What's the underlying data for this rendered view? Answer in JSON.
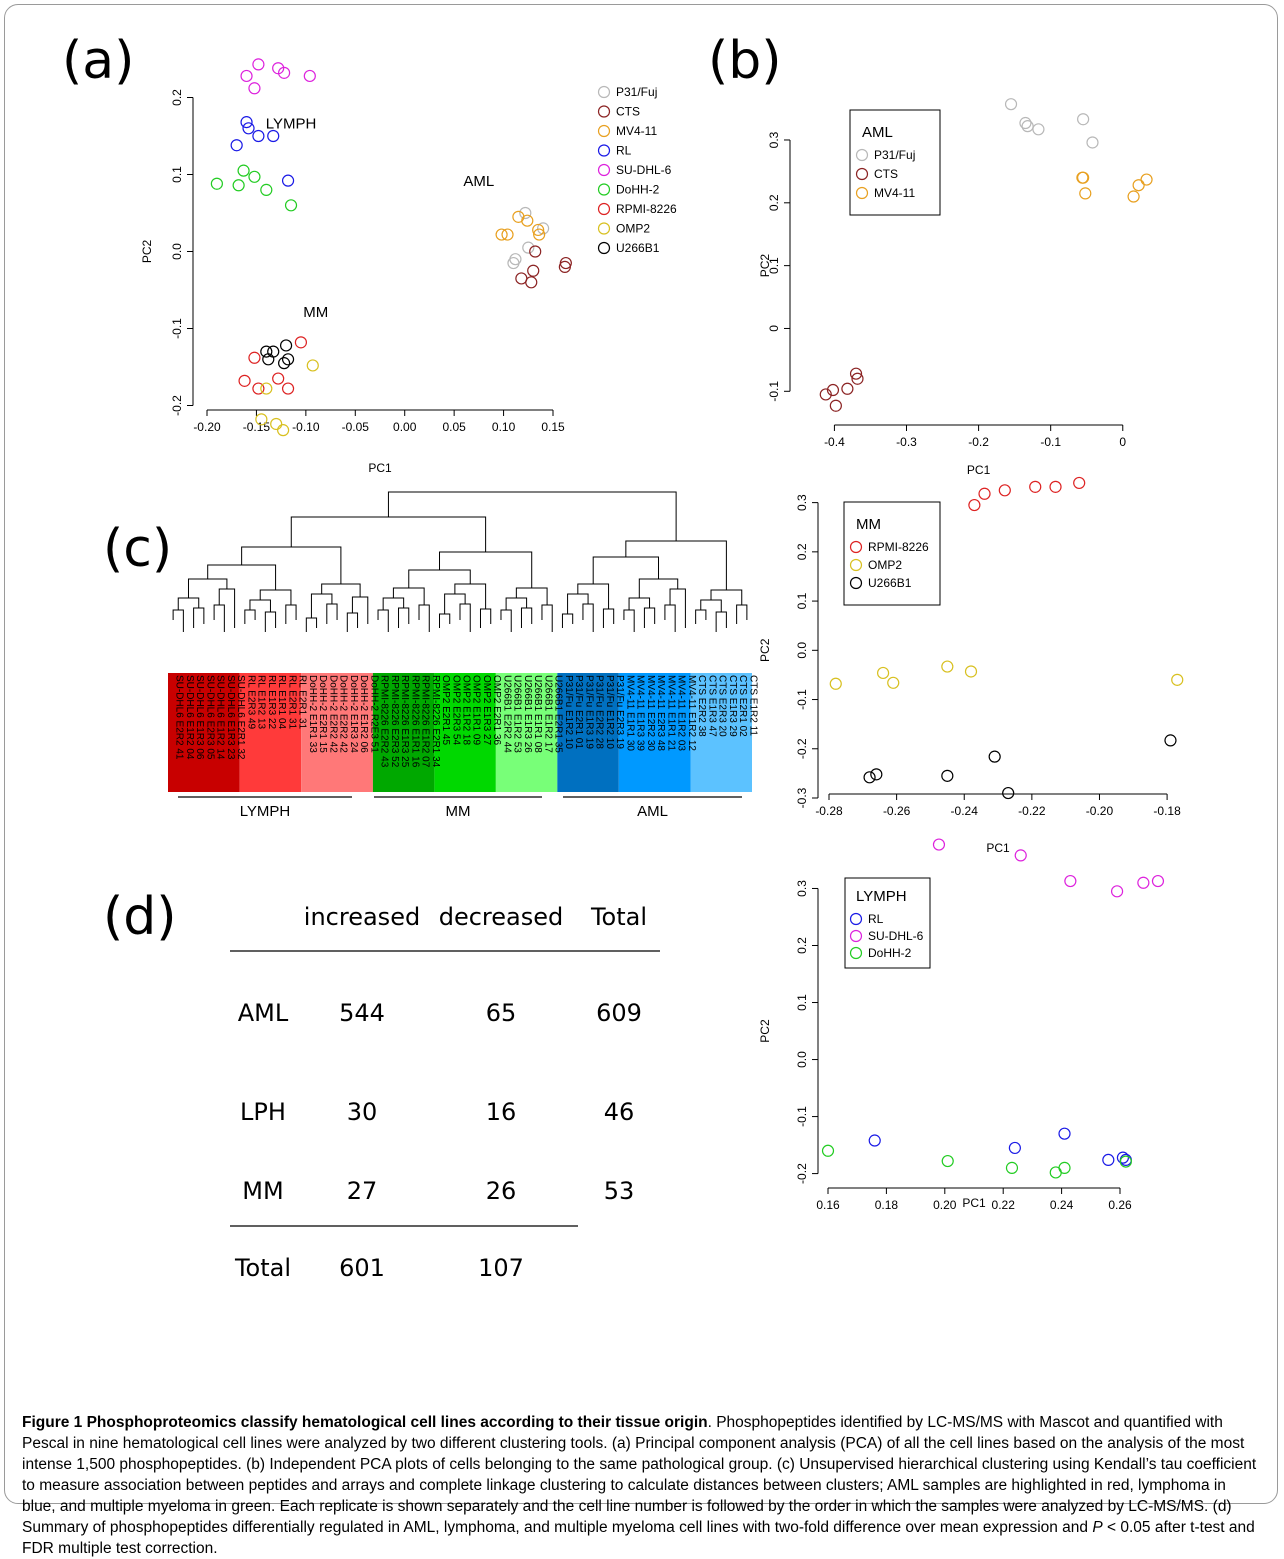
{
  "panel_labels": {
    "a": "(a)",
    "b": "(b)",
    "c": "(c)",
    "d": "(d)"
  },
  "colors": {
    "P31/Fuj": "#b8b8b8",
    "CTS": "#8b2323",
    "MV4-11": "#e8a020",
    "RL": "#1a1ae6",
    "SU-DHL-6": "#dd22dd",
    "DoHH-2": "#22cc22",
    "RPMI-8226": "#dd2222",
    "OMP2": "#d8c020",
    "U266B1": "#000000"
  },
  "chart_data": [
    {
      "id": "a",
      "type": "scatter",
      "xlabel": "PC1",
      "ylabel": "PC2",
      "xlim": [
        -0.2,
        0.15
      ],
      "ylim": [
        -0.25,
        0.25
      ],
      "xticks": [
        "-0.20",
        "-0.15",
        "-0.10",
        "-0.05",
        "0.00",
        "0.05",
        "0.10",
        "0.15"
      ],
      "yticks": [
        "-0.2",
        "-0.1",
        "0.0",
        "0.1",
        "0.2"
      ],
      "annotations": [
        {
          "text": "LYMPH",
          "x": -0.115,
          "y": 0.16
        },
        {
          "text": "AML",
          "x": 0.075,
          "y": 0.085
        },
        {
          "text": "MM",
          "x": -0.09,
          "y": -0.085
        }
      ],
      "legend": [
        "P31/Fuj",
        "CTS",
        "MV4-11",
        "RL",
        "SU-DHL-6",
        "DoHH-2",
        "RPMI-8226",
        "OMP2",
        "U266B1"
      ],
      "series": [
        {
          "name": "P31/Fuj",
          "points": [
            [
              0.122,
              0.05
            ],
            [
              0.14,
              0.03
            ],
            [
              0.112,
              -0.01
            ],
            [
              0.125,
              0.005
            ],
            [
              0.11,
              -0.015
            ]
          ]
        },
        {
          "name": "CTS",
          "points": [
            [
              0.118,
              -0.035
            ],
            [
              0.128,
              -0.04
            ],
            [
              0.13,
              -0.025
            ],
            [
              0.132,
              0.0
            ],
            [
              0.162,
              -0.02
            ],
            [
              0.163,
              -0.015
            ]
          ]
        },
        {
          "name": "MV4-11",
          "points": [
            [
              0.098,
              0.022
            ],
            [
              0.104,
              0.022
            ],
            [
              0.115,
              0.045
            ],
            [
              0.124,
              0.04
            ],
            [
              0.135,
              0.028
            ],
            [
              0.136,
              0.022
            ]
          ]
        },
        {
          "name": "RL",
          "points": [
            [
              -0.17,
              0.138
            ],
            [
              -0.158,
              0.16
            ],
            [
              -0.16,
              0.168
            ],
            [
              -0.148,
              0.15
            ],
            [
              -0.133,
              0.15
            ],
            [
              -0.118,
              0.092
            ]
          ]
        },
        {
          "name": "SU-DHL-6",
          "points": [
            [
              -0.16,
              0.228
            ],
            [
              -0.148,
              0.243
            ],
            [
              -0.152,
              0.212
            ],
            [
              -0.128,
              0.238
            ],
            [
              -0.122,
              0.232
            ],
            [
              -0.096,
              0.228
            ]
          ]
        },
        {
          "name": "DoHH-2",
          "points": [
            [
              -0.19,
              0.088
            ],
            [
              -0.168,
              0.086
            ],
            [
              -0.163,
              0.105
            ],
            [
              -0.152,
              0.097
            ],
            [
              -0.14,
              0.08
            ],
            [
              -0.115,
              0.06
            ]
          ]
        },
        {
          "name": "RPMI-8226",
          "points": [
            [
              -0.105,
              -0.118
            ],
            [
              -0.152,
              -0.138
            ],
            [
              -0.162,
              -0.168
            ],
            [
              -0.148,
              -0.178
            ],
            [
              -0.128,
              -0.165
            ],
            [
              -0.118,
              -0.178
            ]
          ]
        },
        {
          "name": "OMP2",
          "points": [
            [
              -0.093,
              -0.148
            ],
            [
              -0.14,
              -0.178
            ],
            [
              -0.145,
              -0.218
            ],
            [
              -0.13,
              -0.224
            ],
            [
              -0.123,
              -0.232
            ]
          ]
        },
        {
          "name": "U266B1",
          "points": [
            [
              -0.14,
              -0.13
            ],
            [
              -0.133,
              -0.13
            ],
            [
              -0.138,
              -0.14
            ],
            [
              -0.12,
              -0.122
            ],
            [
              -0.118,
              -0.14
            ],
            [
              -0.122,
              -0.145
            ]
          ]
        }
      ]
    },
    {
      "id": "b-aml",
      "type": "scatter",
      "xlabel": "PC1",
      "ylabel": "PC2",
      "legend_title": "AML",
      "xlim": [
        -0.42,
        0.035
      ],
      "ylim": [
        -0.125,
        0.37
      ],
      "xticks": [
        -0.4,
        -0.3,
        -0.2,
        -0.1,
        0.0
      ],
      "yticks": [
        -0.1,
        0.0,
        0.1,
        0.2,
        0.3
      ],
      "legend": [
        "P31/Fuj",
        "CTS",
        "MV4-11"
      ],
      "series": [
        {
          "name": "P31/Fuj",
          "points": [
            [
              -0.155,
              0.357
            ],
            [
              -0.135,
              0.327
            ],
            [
              -0.132,
              0.322
            ],
            [
              -0.117,
              0.317
            ],
            [
              -0.055,
              0.333
            ],
            [
              -0.042,
              0.296
            ]
          ]
        },
        {
          "name": "CTS",
          "points": [
            [
              -0.412,
              -0.105
            ],
            [
              -0.402,
              -0.098
            ],
            [
              -0.398,
              -0.123
            ],
            [
              -0.382,
              -0.096
            ],
            [
              -0.37,
              -0.072
            ],
            [
              -0.368,
              -0.08
            ]
          ]
        },
        {
          "name": "MV4-11",
          "points": [
            [
              -0.056,
              0.24
            ],
            [
              -0.055,
              0.24
            ],
            [
              -0.052,
              0.215
            ],
            [
              0.015,
              0.21
            ],
            [
              0.022,
              0.228
            ],
            [
              0.033,
              0.237
            ]
          ]
        }
      ]
    },
    {
      "id": "b-mm",
      "type": "scatter",
      "xlabel": "PC1",
      "ylabel": "PC2",
      "legend_title": "MM",
      "xlim": [
        -0.28,
        -0.175
      ],
      "ylim": [
        -0.3,
        0.35
      ],
      "xticks": [
        "-0.28",
        "-0.26",
        "-0.24",
        "-0.22",
        "-0.20",
        "-0.18"
      ],
      "yticks": [
        "-0.3",
        "-0.2",
        "-0.1",
        "0.0",
        "0.1",
        "0.2",
        "0.3"
      ],
      "legend": [
        "RPMI-8226",
        "OMP2",
        "U266B1"
      ],
      "series": [
        {
          "name": "RPMI-8226",
          "points": [
            [
              -0.237,
              0.295
            ],
            [
              -0.234,
              0.318
            ],
            [
              -0.228,
              0.325
            ],
            [
              -0.219,
              0.332
            ],
            [
              -0.213,
              0.332
            ],
            [
              -0.206,
              0.34
            ]
          ]
        },
        {
          "name": "OMP2",
          "points": [
            [
              -0.278,
              -0.068
            ],
            [
              -0.264,
              -0.046
            ],
            [
              -0.261,
              -0.066
            ],
            [
              -0.245,
              -0.033
            ],
            [
              -0.238,
              -0.043
            ],
            [
              -0.177,
              -0.06
            ]
          ]
        },
        {
          "name": "U266B1",
          "points": [
            [
              -0.268,
              -0.258
            ],
            [
              -0.266,
              -0.252
            ],
            [
              -0.245,
              -0.255
            ],
            [
              -0.231,
              -0.216
            ],
            [
              -0.227,
              -0.29
            ],
            [
              -0.179,
              -0.183
            ]
          ]
        }
      ]
    },
    {
      "id": "b-lymph",
      "type": "scatter",
      "xlabel": "PC1",
      "ylabel": "PC2",
      "legend_title": "LYMPH",
      "xlim": [
        0.158,
        0.276
      ],
      "ylim": [
        -0.22,
        0.385
      ],
      "xticks": [
        "0.16",
        "0.18",
        "0.20",
        "0.22",
        "0.24",
        "0.26"
      ],
      "yticks": [
        "-0.2",
        "-0.1",
        "0.0",
        "0.1",
        "0.2",
        "0.3"
      ],
      "legend": [
        "RL",
        "SU-DHL-6",
        "DoHH-2"
      ],
      "series": [
        {
          "name": "RL",
          "points": [
            [
              0.176,
              -0.142
            ],
            [
              0.224,
              -0.155
            ],
            [
              0.241,
              -0.13
            ],
            [
              0.256,
              -0.176
            ],
            [
              0.261,
              -0.172
            ],
            [
              0.262,
              -0.176
            ]
          ]
        },
        {
          "name": "SU-DHL-6",
          "points": [
            [
              0.198,
              0.377
            ],
            [
              0.226,
              0.358
            ],
            [
              0.243,
              0.313
            ],
            [
              0.259,
              0.295
            ],
            [
              0.268,
              0.31
            ],
            [
              0.273,
              0.313
            ]
          ]
        },
        {
          "name": "DoHH-2",
          "points": [
            [
              0.16,
              -0.16
            ],
            [
              0.201,
              -0.178
            ],
            [
              0.223,
              -0.19
            ],
            [
              0.238,
              -0.198
            ],
            [
              0.241,
              -0.19
            ],
            [
              0.262,
              -0.179
            ]
          ]
        }
      ]
    },
    {
      "id": "c",
      "type": "dendrogram",
      "leaves": [
        "SU-DHL6 E2R2 41",
        "SU-DHL6 E1R2 04",
        "SU-DHL6 E1R3 06",
        "SU-DHL6 E2R3 05",
        "SU-DHL6 E1R2 14",
        "SU-DHL6 E1R3 23",
        "SU-DHL6 E2R1 32",
        "RL E2R3 49",
        "RL E1R2 13",
        "RL E1R3 22",
        "RL E1R1 04",
        "RL E2R1 31",
        "RL E2R1 31",
        "DoHH-2 E1R1 33",
        "DoHH-2 E2R1 15",
        "DoHH-2 E2R2 42",
        "DoHH-2 E2R2 42",
        "DoHH-2 E1R3 24",
        "DoHH-2 E1R2 06",
        "DoHH-2 R2E3 51",
        "RPMI-8226 E2R2 43",
        "RPMI-8226 E2R3 52",
        "RPMI-8226 E1R3 25",
        "RPMI-8226 E1R1 16",
        "RPMI-8226 E1R2 07",
        "RPMI-8226 E2R1 34",
        "OMP2 E2R1 45",
        "OMP2 E2R3 54",
        "OMP2 E1R2 18",
        "OMP2 E1R1 09",
        "OMP2 E1R3 27",
        "OMP2 E2R1 36",
        "U266B1 E2R2 44",
        "U266B1 E1R2 53",
        "U266B1 E1R3 26",
        "U266B1 E1R1 08",
        "U266B1 E1R2 17",
        "U266B1 E2R1 35",
        "P31/Fu E1R2 10",
        "P31/Fu E2R1 01",
        "P31/Fu E1R3 19",
        "P31/Fu E2R2 28",
        "P31/Fu E1R2 10",
        "P31/Fu E2R3 19",
        "MV4-11 E1R1 30",
        "MV4-11 E1R3 39",
        "MV4-11 E2R2 30",
        "MV4-11 E2R3 48",
        "MV4-11 E1R1 21",
        "MV4-11 E1R2 03",
        "MV4-11 E1R2 12",
        "CTS E2R2 38",
        "CTS E1R3 47",
        "CTS E2R3 20",
        "CTS E1R3 29",
        "CTS E2R1 02",
        "CTS E1R2 11"
      ],
      "groups": [
        "LYMPH",
        "MM",
        "AML"
      ]
    }
  ],
  "table_d": {
    "headers": [
      "",
      "increased",
      "decreased",
      "Total"
    ],
    "rows": [
      [
        "AML",
        "544",
        "65",
        "609"
      ],
      [
        "LPH",
        "30",
        "16",
        "46"
      ],
      [
        "MM",
        "27",
        "26",
        "53"
      ],
      [
        "Total",
        "601",
        "107",
        ""
      ]
    ]
  },
  "caption": {
    "title": "Figure 1 Phosphoproteomics classify hematological cell lines according to their tissue origin",
    "body_1": ". Phosphopeptides identified by LC-MS/MS with Mascot and quantified with Pescal in nine hematological cell lines were analyzed by two different clustering tools. (a) Principal component analysis (PCA) of all the cell lines based on the analysis of the most intense 1,500 phosphopeptides. (b) Independent PCA plots of cells belonging to the same pathological group. (c) Unsupervised hierarchical clustering using Kendall’s tau coefficient to measure association between peptides and arrays and complete linkage clustering to calculate distances between clusters; AML samples are highlighted in red, lymphoma in blue, and multiple myeloma in green. Each replicate is shown separately and the cell line number is followed by the order in which the samples were analyzed by LC-MS/MS. (d) Summary of phosphopeptides differentially regulated in AML, lymphoma, and multiple myeloma cell lines with two-fold difference over mean expression and ",
    "p_symbol": "P",
    "body_2": " < 0.05 after t-test and FDR multiple test correction."
  }
}
